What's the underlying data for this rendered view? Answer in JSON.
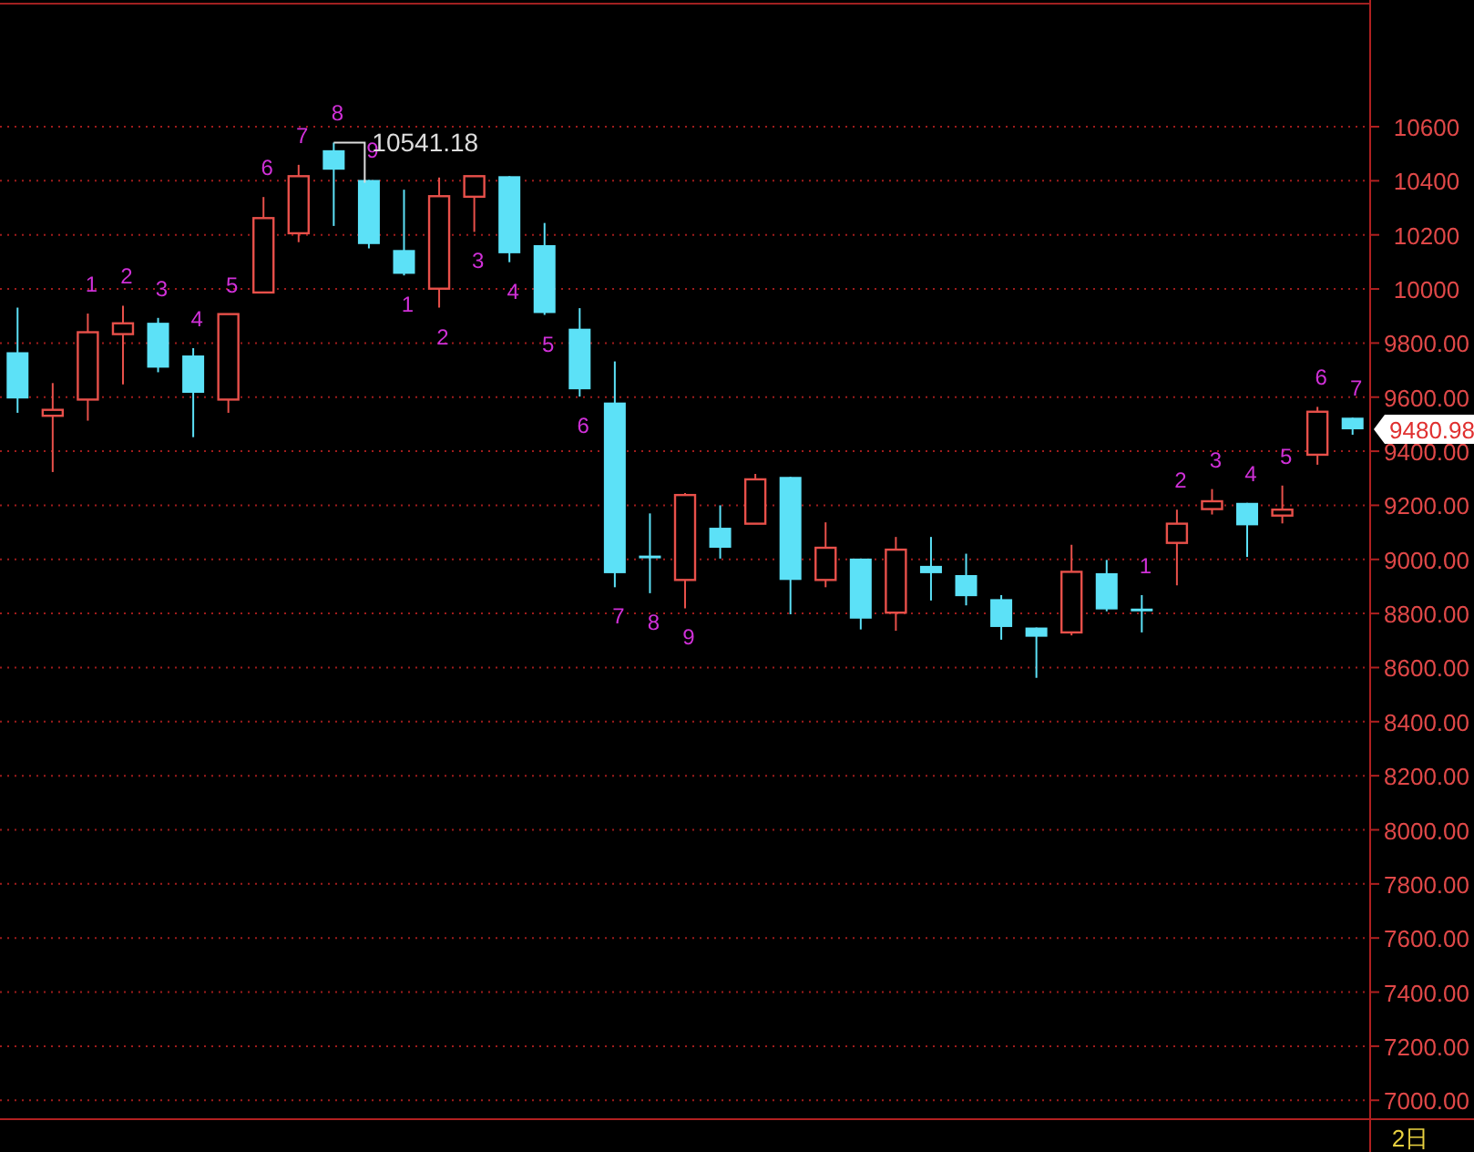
{
  "chart_data": {
    "type": "candlestick",
    "categories": [
      null,
      null,
      null,
      null,
      null,
      null,
      null,
      null,
      null,
      null,
      null,
      null,
      null,
      null,
      null,
      null,
      null,
      null,
      null,
      null,
      null,
      null,
      null,
      null,
      null,
      null,
      null,
      null,
      null,
      null,
      null,
      null,
      null,
      null,
      null,
      null,
      null,
      null,
      null
    ],
    "ohlc": [
      [
        9766,
        9931,
        9542,
        9595
      ],
      [
        9531,
        9652,
        9323,
        9553
      ],
      [
        9591,
        9909,
        9513,
        9840
      ],
      [
        9833,
        9938,
        9647,
        9873
      ],
      [
        9875,
        9893,
        9692,
        9709
      ],
      [
        9754,
        9781,
        9452,
        9616
      ],
      [
        9591,
        9907,
        9542,
        9907
      ],
      [
        9987,
        10340,
        9987,
        10262
      ],
      [
        10206,
        10459,
        10173,
        10417
      ],
      [
        10513,
        10541.18,
        10233,
        10441
      ],
      [
        10403,
        10403,
        10150,
        10166
      ],
      [
        10144,
        10367,
        10050,
        10056
      ],
      [
        10001,
        10412,
        9931,
        10343
      ],
      [
        10341,
        10417,
        10211,
        10417
      ],
      [
        10417,
        10417,
        10099,
        10132
      ],
      [
        10162,
        10244,
        9904,
        9911
      ],
      [
        9853,
        9929,
        9602,
        9629
      ],
      [
        9580,
        9732,
        8897,
        8949
      ],
      [
        9009,
        9170,
        8875,
        9009
      ],
      [
        8924,
        9245,
        8819,
        9238
      ],
      [
        9117,
        9200,
        9003,
        9043
      ],
      [
        9132,
        9316,
        9132,
        9296
      ],
      [
        9305,
        9305,
        8797,
        8924
      ],
      [
        8924,
        9137,
        8897,
        9043
      ],
      [
        9003,
        9003,
        8741,
        8781
      ],
      [
        8803,
        9083,
        8736,
        9036
      ],
      [
        8976,
        9083,
        8848,
        8949
      ],
      [
        8942,
        9021,
        8830,
        8864
      ],
      [
        8853,
        8868,
        8703,
        8750
      ],
      [
        8748,
        8748,
        8562,
        8714
      ],
      [
        8730,
        9054,
        8719,
        8954
      ],
      [
        8949,
        8998,
        8808,
        8815
      ],
      [
        8813,
        8868,
        8730,
        8813
      ],
      [
        9061,
        9184,
        8904,
        9132
      ],
      [
        9186,
        9260,
        9166,
        9215
      ],
      [
        9209,
        9209,
        9009,
        9126
      ],
      [
        9162,
        9273,
        9133,
        9184
      ],
      [
        9387,
        9564,
        9350,
        9546
      ],
      [
        9524,
        9524,
        9461,
        9480.98
      ]
    ],
    "colors": [
      "#5ce1f7",
      "#e8504a",
      "#e8504a",
      "#e8504a",
      "#5ce1f7",
      "#5ce1f7",
      "#e8504a",
      "#e8504a",
      "#e8504a",
      "#5ce1f7",
      "#5ce1f7",
      "#5ce1f7",
      "#e8504a",
      "#e8504a",
      "#5ce1f7",
      "#5ce1f7",
      "#5ce1f7",
      "#5ce1f7",
      "#5ce1f7",
      "#e8504a",
      "#5ce1f7",
      "#e8504a",
      "#5ce1f7",
      "#e8504a",
      "#5ce1f7",
      "#e8504a",
      "#5ce1f7",
      "#5ce1f7",
      "#5ce1f7",
      "#5ce1f7",
      "#e8504a",
      "#5ce1f7",
      "#5ce1f7",
      "#e8504a",
      "#e8504a",
      "#5ce1f7",
      "#e8504a",
      "#e8504a",
      "#5ce1f7"
    ],
    "value_labels": [
      null,
      null,
      "1",
      "2",
      "3",
      "4",
      "5",
      "6",
      "7",
      "8",
      "9",
      "1",
      "2",
      "3",
      "4",
      "5",
      "6",
      "7",
      "8",
      "9",
      null,
      null,
      null,
      null,
      null,
      null,
      null,
      null,
      null,
      null,
      null,
      null,
      "1",
      "2",
      "3",
      "4",
      "5",
      "6",
      "7"
    ],
    "ylim": [
      6930,
      11055
    ],
    "yticks": [
      {
        "value": 7000,
        "label": "7000.00"
      },
      {
        "value": 7200,
        "label": "7200.00"
      },
      {
        "value": 7400,
        "label": "7400.00"
      },
      {
        "value": 7600,
        "label": "7600.00"
      },
      {
        "value": 7800,
        "label": "7800.00"
      },
      {
        "value": 8000,
        "label": "8000.00"
      },
      {
        "value": 8200,
        "label": "8200.00"
      },
      {
        "value": 8400,
        "label": "8400.00"
      },
      {
        "value": 8600,
        "label": "8600.00"
      },
      {
        "value": 8800,
        "label": "8800.00"
      },
      {
        "value": 9000,
        "label": "9000.00"
      },
      {
        "value": 9200,
        "label": "9200.00"
      },
      {
        "value": 9400,
        "label": "9400.00"
      },
      {
        "value": 9600,
        "label": "9600.00"
      },
      {
        "value": 9800,
        "label": "9800.00"
      },
      10000,
      10200,
      10400,
      10600
    ],
    "grid": "y",
    "annotations": [
      "10541.18",
      "9480.98",
      "2日"
    ]
  }
}
